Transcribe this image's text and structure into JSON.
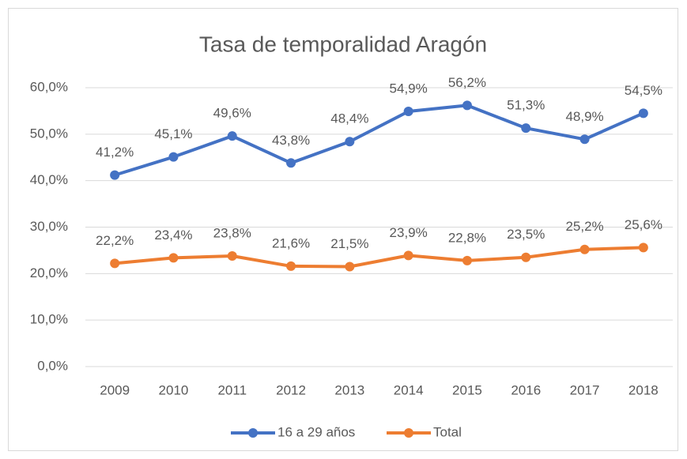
{
  "chart_data": {
    "type": "line",
    "title": "Tasa de temporalidad Aragón",
    "categories": [
      "2009",
      "2010",
      "2011",
      "2012",
      "2013",
      "2014",
      "2015",
      "2016",
      "2017",
      "2018"
    ],
    "series": [
      {
        "name": "16 a 29 años",
        "color": "#4472c4",
        "values": [
          41.2,
          45.1,
          49.6,
          43.8,
          48.4,
          54.9,
          56.2,
          51.3,
          48.9,
          54.5
        ],
        "value_labels": [
          "41,2%",
          "45,1%",
          "49,6%",
          "43,8%",
          "48,4%",
          "54,9%",
          "56,2%",
          "51,3%",
          "48,9%",
          "54,5%"
        ]
      },
      {
        "name": "Total",
        "color": "#ed7d31",
        "values": [
          22.2,
          23.4,
          23.8,
          21.6,
          21.5,
          23.9,
          22.8,
          23.5,
          25.2,
          25.6
        ],
        "value_labels": [
          "22,2%",
          "23,4%",
          "23,8%",
          "21,6%",
          "21,5%",
          "23,9%",
          "22,8%",
          "23,5%",
          "25,2%",
          "25,6%"
        ]
      }
    ],
    "ylim": [
      0,
      60
    ],
    "yticks": [
      {
        "value": 0,
        "label": "0,0%"
      },
      {
        "value": 10,
        "label": "10,0%"
      },
      {
        "value": 20,
        "label": "20,0%"
      },
      {
        "value": 30,
        "label": "30,0%"
      },
      {
        "value": 40,
        "label": "40,0%"
      },
      {
        "value": 50,
        "label": "50,0%"
      },
      {
        "value": 60,
        "label": "60,0%"
      }
    ],
    "grid": true,
    "legend": "bottom"
  }
}
